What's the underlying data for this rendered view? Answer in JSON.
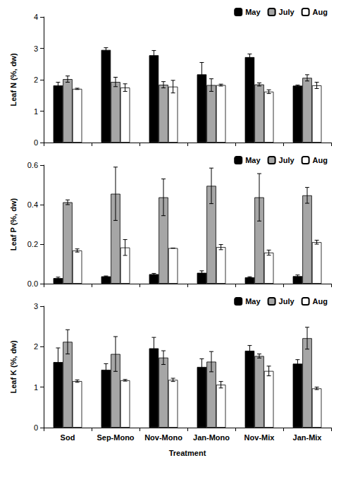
{
  "chart_data": [
    {
      "type": "bar",
      "categories": [
        "Sod",
        "Sep-Mono",
        "Nov-Mono",
        "Jan-Mono",
        "Nov-Mix",
        "Jan-Mix"
      ],
      "series": [
        {
          "name": "May",
          "color": "#000000",
          "values": [
            1.82,
            2.95,
            2.78,
            2.17,
            2.72,
            1.81
          ],
          "errors": [
            0.1,
            0.07,
            0.15,
            0.38,
            0.1,
            0.02
          ]
        },
        {
          "name": "July",
          "color": "#a6a6a6",
          "values": [
            2.02,
            1.93,
            1.84,
            1.83,
            1.85,
            2.06
          ],
          "errors": [
            0.1,
            0.15,
            0.1,
            0.2,
            0.05,
            0.1
          ]
        },
        {
          "name": "Aug",
          "color": "#ffffff",
          "values": [
            1.71,
            1.75,
            1.78,
            1.83,
            1.62,
            1.82
          ],
          "errors": [
            0.02,
            0.12,
            0.2,
            0.03,
            0.06,
            0.1
          ]
        }
      ],
      "ylabel": "Leaf N (%, dw)",
      "ylim": [
        0,
        4
      ],
      "yticks": [
        0,
        1,
        2,
        3,
        4
      ],
      "grid": false,
      "legend": "upper right",
      "tick_labels": "y"
    },
    {
      "type": "bar",
      "categories": [
        "Sod",
        "Sep-Mono",
        "Nov-Mono",
        "Jan-Mono",
        "Nov-Mix",
        "Jan-Mix"
      ],
      "series": [
        {
          "name": "May",
          "color": "#000000",
          "values": [
            0.028,
            0.037,
            0.048,
            0.055,
            0.032,
            0.038
          ],
          "errors": [
            0.005,
            0.002,
            0.004,
            0.01,
            0.003,
            0.006
          ]
        },
        {
          "name": "July",
          "color": "#a6a6a6",
          "values": [
            0.412,
            0.455,
            0.437,
            0.495,
            0.437,
            0.447
          ],
          "errors": [
            0.012,
            0.135,
            0.093,
            0.09,
            0.12,
            0.04
          ]
        },
        {
          "name": "Aug",
          "color": "#ffffff",
          "values": [
            0.168,
            0.183,
            0.18,
            0.185,
            0.157,
            0.21
          ],
          "errors": [
            0.008,
            0.04,
            0,
            0.013,
            0.013,
            0.01
          ]
        }
      ],
      "ylabel": "Leaf P (%, dw)",
      "ylim": [
        0,
        0.6
      ],
      "yticks": [
        {
          "value": 0,
          "label": "0.0"
        },
        0.2,
        0.4,
        0.6
      ],
      "grid": false,
      "legend": "upper right",
      "tick_labels": "y"
    },
    {
      "type": "bar",
      "categories": [
        "Sod",
        "Sep-Mono",
        "Nov-Mono",
        "Jan-Mono",
        "Nov-Mix",
        "Jan-Mix"
      ],
      "series": [
        {
          "name": "May",
          "color": "#000000",
          "values": [
            1.62,
            1.43,
            1.96,
            1.5,
            1.9,
            1.58
          ],
          "errors": [
            0.35,
            0.15,
            0.27,
            0.2,
            0.13,
            0.1
          ]
        },
        {
          "name": "July",
          "color": "#a6a6a6",
          "values": [
            2.12,
            1.82,
            1.73,
            1.63,
            1.77,
            2.21
          ],
          "errors": [
            0.3,
            0.43,
            0.17,
            0.25,
            0.05,
            0.27
          ]
        },
        {
          "name": "Aug",
          "color": "#ffffff",
          "values": [
            1.15,
            1.17,
            1.18,
            1.06,
            1.4,
            0.97
          ],
          "errors": [
            0.03,
            0.02,
            0.04,
            0.08,
            0.12,
            0.03
          ]
        }
      ],
      "ylabel": "Leaf K (%, dw)",
      "xlabel": "Treatment",
      "ylim": [
        0,
        3
      ],
      "yticks": [
        0,
        1,
        2,
        3
      ],
      "grid": false,
      "legend": "upper right"
    }
  ]
}
